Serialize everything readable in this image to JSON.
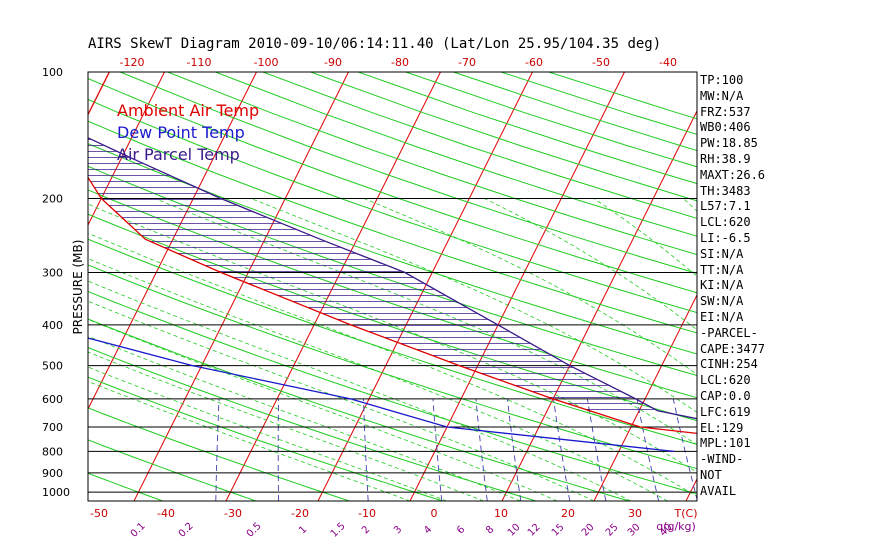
{
  "chart_data": {
    "type": "line",
    "title": "AIRS SkewT Diagram 2010-09-10/06:14:11.40 (Lat/Lon 25.95/104.35 deg)",
    "ylabel": "PRESSURE (MB)",
    "xlabel": "T(C)",
    "mixing_label": "q(g/kg)",
    "pressure_ticks": [
      100,
      200,
      300,
      400,
      500,
      600,
      700,
      800,
      900,
      1000
    ],
    "top_temp_ticks": [
      -120,
      -110,
      -100,
      -90,
      -80,
      -70,
      -60,
      -50,
      -40
    ],
    "bottom_temp_ticks": [
      -50,
      -40,
      -30,
      -20,
      -10,
      0,
      10,
      20,
      30
    ],
    "mixing_ratio_ticks": [
      0.1,
      0.2,
      0.5,
      1,
      1.5,
      2,
      3,
      4,
      6,
      8,
      10,
      12,
      15,
      20,
      25,
      30,
      40
    ],
    "legend": [
      {
        "label": "Ambient Air Temp",
        "color": "#e00000"
      },
      {
        "label": "Dew Point Temp",
        "color": "#1a1acc"
      },
      {
        "label": "Air Parcel Temp",
        "color": "#3a1a8a"
      }
    ],
    "series": [
      {
        "name": "Ambient Air Temp",
        "color": "#e00000",
        "points": [
          [
            100,
            -76
          ],
          [
            140,
            -76
          ],
          [
            160,
            -75
          ],
          [
            200,
            -70
          ],
          [
            250,
            -63
          ],
          [
            300,
            -53
          ],
          [
            400,
            -36
          ],
          [
            500,
            -22
          ],
          [
            600,
            -10
          ],
          [
            700,
            1
          ],
          [
            800,
            26
          ]
        ]
      },
      {
        "name": "Dew Point Temp",
        "color": "#1a1acc",
        "points": [
          [
            100,
            -89
          ],
          [
            150,
            -85
          ],
          [
            200,
            -86
          ],
          [
            250,
            -86
          ],
          [
            300,
            -80
          ],
          [
            400,
            -70
          ],
          [
            500,
            -51
          ],
          [
            600,
            -32
          ],
          [
            700,
            -20
          ],
          [
            800,
            6
          ]
        ]
      },
      {
        "name": "Air Parcel Temp",
        "color": "#3a1a8a",
        "points": [
          [
            100,
            -89
          ],
          [
            140,
            -76
          ],
          [
            160,
            -69
          ],
          [
            200,
            -57
          ],
          [
            250,
            -44
          ],
          [
            300,
            -33
          ],
          [
            400,
            -20
          ],
          [
            500,
            -10
          ],
          [
            600,
            -1
          ],
          [
            640,
            2
          ],
          [
            800,
            26
          ]
        ]
      }
    ]
  },
  "side_panel": [
    "TP:100",
    "MW:N/A",
    "FRZ:537",
    "WB0:406",
    "PW:18.85",
    "RH:38.9",
    "MAXT:26.6",
    "TH:3483",
    "L57:7.1",
    "LCL:620",
    "LI:-6.5",
    "SI:N/A",
    "TT:N/A",
    "KI:N/A",
    "SW:N/A",
    "EI:N/A",
    "-PARCEL-",
    "CAPE:3477",
    "CINH:254",
    "LCL:620",
    "CAP:0.0",
    "LFC:619",
    "EL:129",
    "MPL:101",
    "-WIND-",
    "NOT",
    "AVAIL"
  ],
  "colors": {
    "dry_adiabat": "#22cc22",
    "moist_adiabat": "#22cc22",
    "isotherm": "#dd0000",
    "mixing_ratio": "#4040b0",
    "axis_label": "#cc0000",
    "mixing_label": "#880088"
  }
}
